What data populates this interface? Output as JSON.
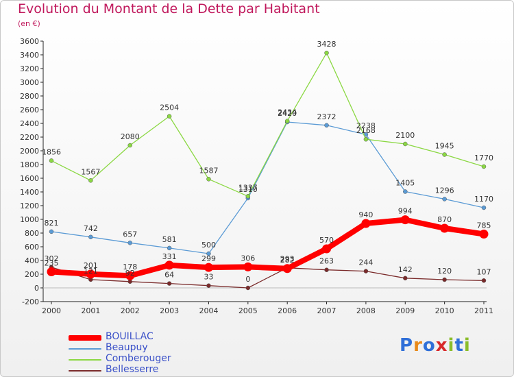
{
  "title": "Evolution du Montant de la Dette par Habitant",
  "subtitle": "(en €)",
  "logo": "Proxiti",
  "chart_data": {
    "type": "line",
    "x": [
      "2000",
      "2001",
      "2002",
      "2003",
      "2004",
      "2005",
      "2006",
      "2007",
      "2008",
      "2009",
      "2010",
      "2011"
    ],
    "ylim": [
      -200,
      3600
    ],
    "yticks": [
      -200,
      0,
      200,
      400,
      600,
      800,
      1000,
      1200,
      1400,
      1600,
      1800,
      2000,
      2200,
      2400,
      2600,
      2800,
      3000,
      3200,
      3400,
      3600
    ],
    "grid": false,
    "legend_position": "bottom-left",
    "series": [
      {
        "name": "BOUILLAC",
        "color": "#ff0000",
        "values": [
          235,
          201,
          178,
          331,
          299,
          306,
          282,
          570,
          940,
          994,
          870,
          785
        ]
      },
      {
        "name": "Beaupuy",
        "color": "#5b9bd5",
        "values": [
          821,
          742,
          657,
          581,
          500,
          1310,
          2420,
          2372,
          2238,
          1405,
          1296,
          1170
        ]
      },
      {
        "name": "Comberouger",
        "color": "#8bd843",
        "values": [
          1856,
          1567,
          2080,
          2504,
          1587,
          1337,
          2434,
          3428,
          2168,
          2100,
          1945,
          1770
        ]
      },
      {
        "name": "Bellesserre",
        "color": "#7a2a2a",
        "values": [
          302,
          121,
          92,
          64,
          33,
          0,
          293,
          263,
          244,
          142,
          120,
          107
        ]
      }
    ]
  }
}
